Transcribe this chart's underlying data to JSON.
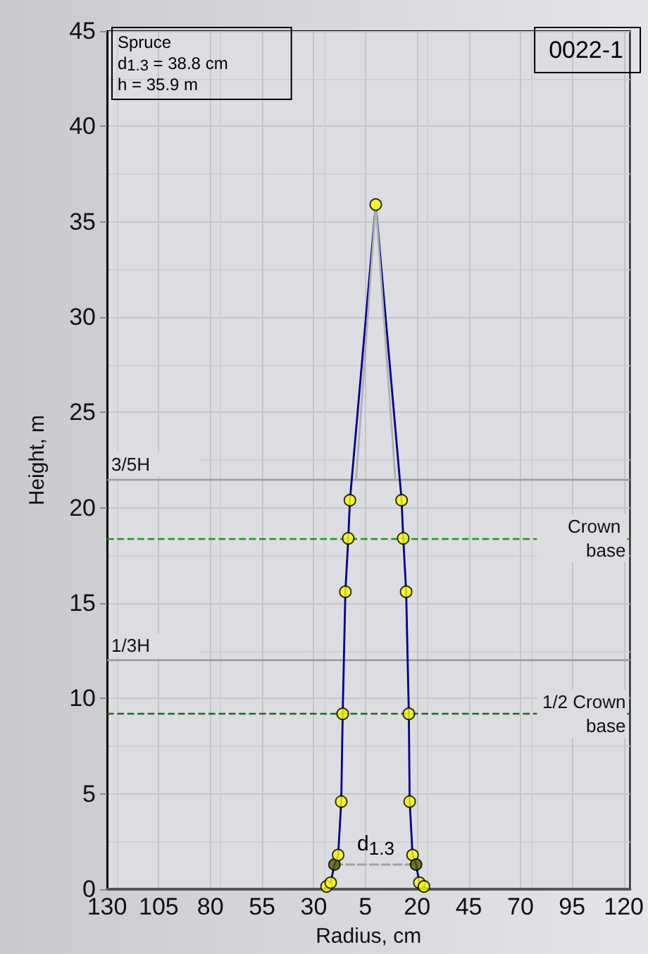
{
  "chart_data": {
    "type": "line",
    "xlabel": "Radius, cm",
    "ylabel": "Height, m",
    "xlim": [
      -130,
      123
    ],
    "xticks": [
      {
        "value": -130,
        "label": "130"
      },
      {
        "value": -105,
        "label": "105"
      },
      {
        "value": -80,
        "label": "80"
      },
      {
        "value": -55,
        "label": "55"
      },
      {
        "value": -30,
        "label": "30"
      },
      {
        "value": -5,
        "label": "5"
      },
      20,
      45,
      70,
      95,
      120
    ],
    "ylim": [
      0,
      45
    ],
    "yticks": [
      0,
      5,
      10,
      15,
      20,
      25,
      30,
      35,
      40,
      45
    ],
    "grid": true,
    "series": [
      {
        "type": "line",
        "color": "#b0b0b0",
        "marker": "none",
        "x": [
          -9.5,
          0,
          9.5
        ],
        "values": [
          21.5,
          35.9,
          21.5
        ]
      },
      {
        "type": "line",
        "color": "#00008b",
        "marker": "none",
        "x": [
          -25,
          -23.8,
          -21.8,
          -20,
          -18.2,
          -16.7,
          -16,
          -14.7,
          -13.3,
          -12.5,
          0,
          12.5,
          13.3,
          14.7,
          16,
          16.4,
          17.8,
          19.5,
          21.1,
          23.3,
          25
        ],
        "values": [
          0,
          0.15,
          0.35,
          1.3,
          1.8,
          4.6,
          9.2,
          15.6,
          18.4,
          20.4,
          35.9,
          20.4,
          18.4,
          15.6,
          9.2,
          4.6,
          1.8,
          1.3,
          0.35,
          0.15,
          0
        ]
      },
      {
        "type": "line",
        "color": "#a0a0a0",
        "marker": "none",
        "line_style": "dashed",
        "x": [
          -20,
          19.5
        ],
        "values": [
          1.3,
          1.3
        ]
      },
      {
        "type": "scatter",
        "color": "#ffff00",
        "marker": "circle",
        "x": [
          -23.8,
          -21.8,
          -20,
          -18.2,
          -16.7,
          -16,
          -14.7,
          -13.3,
          -12.5,
          0,
          12.5,
          13.3,
          14.7,
          16,
          16.4,
          17.8,
          19.5,
          21.1,
          23.3
        ],
        "values": [
          0.15,
          0.35,
          1.3,
          1.8,
          4.6,
          9.2,
          15.6,
          18.4,
          20.4,
          35.9,
          20.4,
          18.4,
          15.6,
          9.2,
          4.6,
          1.8,
          1.3,
          0.35,
          0.15
        ],
        "colors": [
          "#ffff00",
          "#ffff00",
          "#5a5a00",
          "#ffff00",
          "#ffff00",
          "#ffff00",
          "#ffff00",
          "#ffff00",
          "#ffff00",
          "#ffff00",
          "#ffff00",
          "#ffff00",
          "#ffff00",
          "#ffff00",
          "#ffff00",
          "#ffff00",
          "#5a5a00",
          "#ffff00",
          "#ffff00"
        ]
      }
    ],
    "ref_lines": [
      {
        "axis": "y",
        "value": 21.5,
        "label": "3/5H",
        "color": "#999999",
        "line_style": "solid"
      },
      {
        "axis": "y",
        "value": 18.4,
        "label": "Crown base",
        "color": "#1a9a1a",
        "line_style": "dashed"
      },
      {
        "axis": "y",
        "value": 12.0,
        "label": "1/3H",
        "color": "#999999",
        "line_style": "solid"
      },
      {
        "axis": "y",
        "value": 9.2,
        "label": "1/2 Crown base",
        "color": "#1a6a1a",
        "line_style": "dashed"
      }
    ],
    "annotations": [
      "Spruce\nd$_{1.3}$ = 38.8 cm\nh = 35.9 m",
      "0022-1",
      {
        "text": "d$_{1.3}$",
        "x": 0,
        "y": 1.3
      }
    ]
  }
}
